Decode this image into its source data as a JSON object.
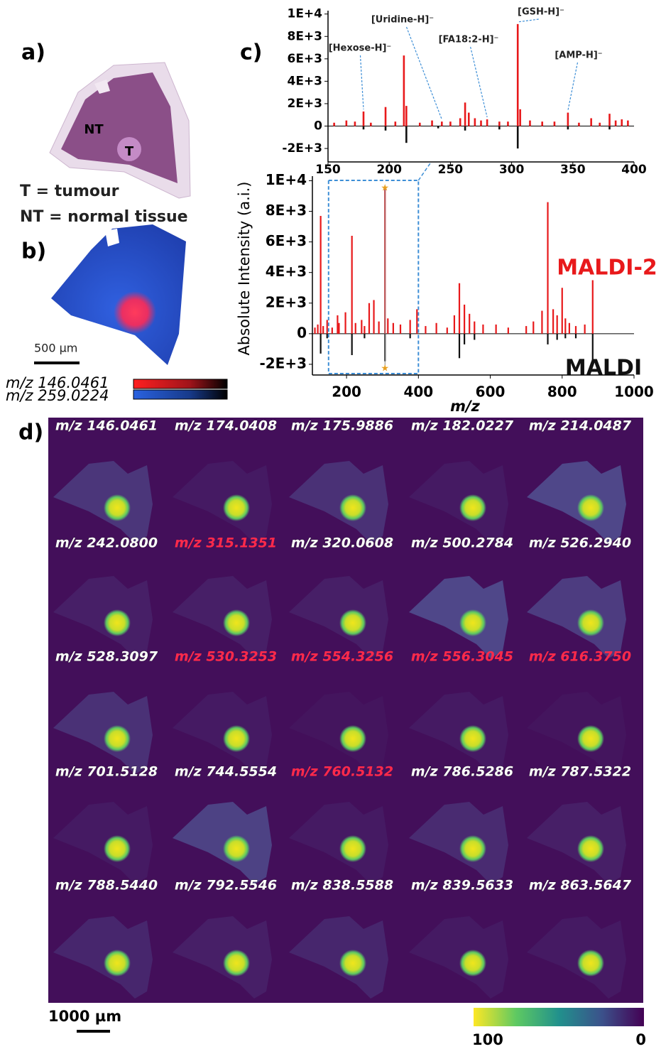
{
  "panel_labels": {
    "a": "a)",
    "b": "b)",
    "c": "c)",
    "d": "d)"
  },
  "panel_a": {
    "regions": [
      "NT",
      "T"
    ],
    "legend": [
      "T = tumour",
      "NT = normal tissue"
    ]
  },
  "panel_b": {
    "scale_bar": "500 µm",
    "colorbars": [
      {
        "label": "m/z 146.0461",
        "color": "#ff2020"
      },
      {
        "label": "m/z 259.0224",
        "color": "#2a62e0"
      }
    ]
  },
  "chart_data": [
    {
      "type": "stem",
      "xlim": [
        150,
        400
      ],
      "xticks": [
        150,
        200,
        250,
        300,
        350,
        400
      ],
      "ylim": [
        -3200,
        10300
      ],
      "yticks": [
        {
          "value": 10000,
          "label": "1E+4"
        },
        {
          "value": 8000,
          "label": "8E+3"
        },
        {
          "value": 6000,
          "label": "6E+3"
        },
        {
          "value": 4000,
          "label": "4E+3"
        },
        {
          "value": 2000,
          "label": "2E+3"
        },
        0,
        {
          "value": -2000,
          "label": "-2E+3"
        }
      ],
      "series": [
        {
          "color": "#e8191b",
          "x": [
            155,
            165,
            172,
            179,
            185,
            197,
            205,
            212,
            214,
            225,
            235,
            243,
            250,
            258,
            262,
            265,
            270,
            275,
            280,
            290,
            297,
            305,
            307,
            315,
            325,
            335,
            346,
            355,
            365,
            372,
            380,
            385,
            390,
            395
          ],
          "values": [
            300,
            500,
            400,
            1300,
            300,
            1700,
            400,
            6300,
            1800,
            300,
            500,
            400,
            400,
            700,
            2100,
            1200,
            700,
            500,
            600,
            400,
            400,
            9100,
            1500,
            500,
            400,
            400,
            1200,
            300,
            700,
            300,
            1100,
            500,
            600,
            500
          ]
        },
        {
          "color": "#111111",
          "x": [
            179,
            197,
            214,
            240,
            262,
            290,
            305,
            346,
            380
          ],
          "values": [
            -300,
            -400,
            -1500,
            -200,
            -400,
            -300,
            -2000,
            -300,
            -300
          ]
        }
      ],
      "annotations": [
        {
          "text": "[Hexose-H]⁻",
          "x": 179
        },
        {
          "text": "[Uridine-H]⁻",
          "x": 243
        },
        {
          "text": "[FA18:2-H]⁻",
          "x": 280
        },
        {
          "text": "[GSH-H]⁻",
          "x": 305
        },
        {
          "text": "[AMP-H]⁻",
          "x": 346
        }
      ]
    },
    {
      "type": "stem",
      "xlabel": "m/z",
      "ylabel": "Absolute Intensity (a.i.)",
      "xlim": [
        105,
        1000
      ],
      "xticks": [
        200,
        400,
        600,
        800,
        1000
      ],
      "ylim": [
        -2700,
        10300
      ],
      "yticks": [
        {
          "value": 10000,
          "label": "1E+4"
        },
        {
          "value": 8000,
          "label": "8E+3"
        },
        {
          "value": 6000,
          "label": "6E+3"
        },
        {
          "value": 4000,
          "label": "4E+3"
        },
        {
          "value": 2000,
          "label": "2E+3"
        },
        0,
        {
          "value": -2000,
          "label": "-2E+3"
        }
      ],
      "series": [
        {
          "name": "MALDI-2",
          "color": "#e8191b",
          "x": [
            112,
            120,
            128,
            135,
            146,
            160,
            175,
            179,
            197,
            215,
            225,
            242,
            250,
            263,
            276,
            290,
            307,
            315,
            330,
            350,
            377,
            396,
            420,
            450,
            480,
            500,
            514,
            528,
            542,
            556,
            580,
            616,
            650,
            700,
            720,
            744,
            760,
            775,
            786,
            800,
            809,
            820,
            838,
            863,
            885
          ],
          "values": [
            400,
            600,
            7700,
            500,
            900,
            400,
            1200,
            700,
            1400,
            6400,
            700,
            900,
            500,
            2000,
            2200,
            800,
            9500,
            1000,
            700,
            600,
            900,
            1600,
            500,
            700,
            400,
            1200,
            3300,
            1900,
            1300,
            800,
            600,
            600,
            400,
            500,
            800,
            1500,
            8600,
            1600,
            1200,
            3000,
            1000,
            700,
            500,
            600,
            3500
          ]
        },
        {
          "name": "MALDI",
          "color": "#111111",
          "x": [
            128,
            146,
            215,
            250,
            307,
            377,
            514,
            528,
            556,
            760,
            786,
            809,
            838,
            885
          ],
          "values": [
            -1300,
            -300,
            -1400,
            -300,
            -1800,
            -300,
            -1600,
            -700,
            -400,
            -700,
            -400,
            -300,
            -300,
            -1900
          ]
        }
      ]
    }
  ],
  "panel_d": {
    "labels": [
      {
        "text": "m/z 146.0461",
        "highlight": false
      },
      {
        "text": "m/z 174.0408",
        "highlight": false
      },
      {
        "text": "m/z 175.9886",
        "highlight": false
      },
      {
        "text": "m/z 182.0227",
        "highlight": false
      },
      {
        "text": "m/z 214.0487",
        "highlight": false
      },
      {
        "text": "m/z 242.0800",
        "highlight": false
      },
      {
        "text": "m/z 315.1351",
        "highlight": true
      },
      {
        "text": "m/z 320.0608",
        "highlight": false
      },
      {
        "text": "m/z 500.2784",
        "highlight": false
      },
      {
        "text": "m/z 526.2940",
        "highlight": false
      },
      {
        "text": "m/z 528.3097",
        "highlight": false
      },
      {
        "text": "m/z 530.3253",
        "highlight": true
      },
      {
        "text": "m/z 554.3256",
        "highlight": true
      },
      {
        "text": "m/z 556.3045",
        "highlight": true
      },
      {
        "text": "m/z 616.3750",
        "highlight": true
      },
      {
        "text": "m/z 701.5128",
        "highlight": false
      },
      {
        "text": "m/z 744.5554",
        "highlight": false
      },
      {
        "text": "m/z 760.5132",
        "highlight": true
      },
      {
        "text": "m/z 786.5286",
        "highlight": false
      },
      {
        "text": "m/z 787.5322",
        "highlight": false
      },
      {
        "text": "m/z 788.5440",
        "highlight": false
      },
      {
        "text": "m/z 792.5546",
        "highlight": false
      },
      {
        "text": "m/z 838.5588",
        "highlight": false
      },
      {
        "text": "m/z 839.5633",
        "highlight": false
      },
      {
        "text": "m/z 863.5647",
        "highlight": false
      }
    ],
    "scale_bar": "1000 µm",
    "colorbar_ticks": [
      100,
      0
    ]
  }
}
